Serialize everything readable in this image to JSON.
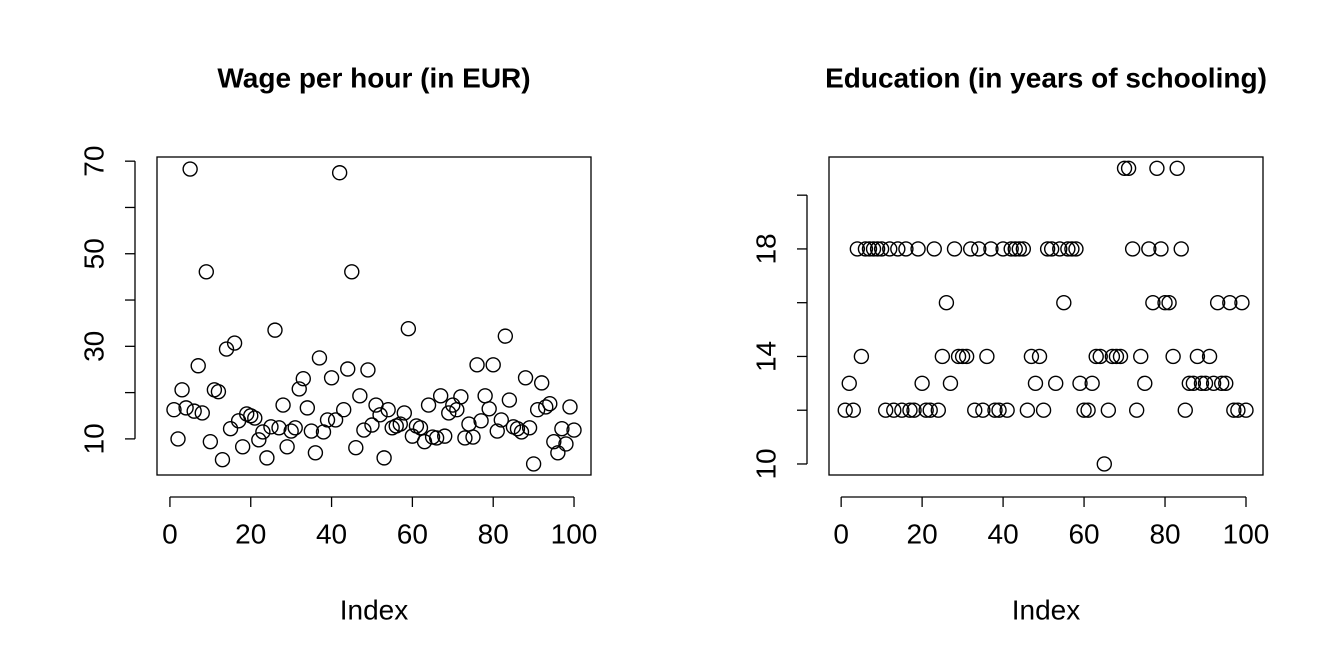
{
  "chart_data": [
    {
      "type": "scatter",
      "title": "Wage per hour (in EUR)",
      "x_label": "Index",
      "x": [
        1,
        2,
        3,
        4,
        5,
        6,
        7,
        8,
        9,
        10,
        11,
        12,
        13,
        14,
        15,
        16,
        17,
        18,
        19,
        20,
        21,
        22,
        23,
        24,
        25,
        26,
        27,
        28,
        29,
        30,
        31,
        32,
        33,
        34,
        35,
        36,
        37,
        38,
        39,
        40,
        41,
        42,
        43,
        44,
        45,
        46,
        47,
        48,
        49,
        50,
        51,
        52,
        53,
        54,
        55,
        56,
        57,
        58,
        59,
        60,
        61,
        62,
        63,
        64,
        65,
        66,
        67,
        68,
        69,
        70,
        71,
        72,
        73,
        74,
        75,
        76,
        77,
        78,
        79,
        80,
        81,
        82,
        83,
        84,
        85,
        86,
        87,
        88,
        89,
        90,
        91,
        92,
        93,
        94,
        95,
        96,
        97,
        98,
        99,
        100
      ],
      "values": [
        16.3,
        10,
        20.6,
        16.7,
        68.3,
        16,
        25.8,
        15.6,
        46.1,
        9.4,
        20.6,
        20.2,
        5.5,
        29.4,
        12.2,
        30.7,
        13.9,
        8.3,
        15.4,
        15,
        14.5,
        9.8,
        11.5,
        5.9,
        12.6,
        33.5,
        12.4,
        17.3,
        8.3,
        11.7,
        12.4,
        20.8,
        23,
        16.7,
        11.7,
        7,
        27.5,
        11.5,
        14.1,
        23.2,
        14.1,
        67.5,
        16.3,
        25.1,
        46.1,
        8.1,
        19.3,
        11.9,
        24.9,
        13,
        17.3,
        15.2,
        5.9,
        16.3,
        12.4,
        12.8,
        13.2,
        15.6,
        33.8,
        10.6,
        12.8,
        12.4,
        9.4,
        17.3,
        10.4,
        10.2,
        19.3,
        10.6,
        15.6,
        17.3,
        16.3,
        19.1,
        10.2,
        13.2,
        10.4,
        26,
        13.9,
        19.3,
        16.5,
        26,
        11.7,
        14.1,
        32.2,
        18.4,
        12.6,
        12.2,
        11.5,
        23.2,
        12.4,
        4.6,
        16.3,
        22.1,
        16.9,
        17.6,
        9.4,
        7,
        12.2,
        8.9,
        16.9,
        11.9
      ],
      "color": "#000000",
      "xlim": [
        -3.2,
        104.2
      ],
      "xticks": [
        0,
        20,
        40,
        60,
        80,
        100
      ],
      "ylim": [
        2.2,
        70.9
      ],
      "yticks": [
        10,
        30,
        50,
        70
      ],
      "yticks_unlabeled": [
        20,
        40,
        60
      ]
    },
    {
      "type": "scatter",
      "title": "Education (in years of schooling)",
      "x_label": "Index",
      "x": [
        1,
        2,
        3,
        4,
        5,
        6,
        7,
        8,
        9,
        10,
        11,
        12,
        13,
        14,
        15,
        16,
        17,
        18,
        19,
        20,
        21,
        22,
        23,
        24,
        25,
        26,
        27,
        28,
        29,
        30,
        31,
        32,
        33,
        34,
        35,
        36,
        37,
        38,
        39,
        40,
        41,
        42,
        43,
        44,
        45,
        46,
        47,
        48,
        49,
        50,
        51,
        52,
        53,
        54,
        55,
        56,
        57,
        58,
        59,
        60,
        61,
        62,
        63,
        64,
        65,
        66,
        67,
        68,
        69,
        70,
        71,
        72,
        73,
        74,
        75,
        76,
        77,
        78,
        79,
        80,
        81,
        82,
        83,
        84,
        85,
        86,
        87,
        88,
        89,
        90,
        91,
        92,
        93,
        94,
        95,
        96,
        97,
        98,
        99,
        100
      ],
      "values": [
        12,
        13,
        12,
        18,
        14,
        18,
        18,
        18,
        18,
        18,
        12,
        18,
        12,
        18,
        12,
        18,
        12,
        12,
        18,
        13,
        12,
        12,
        18,
        12,
        14,
        16,
        13,
        18,
        14,
        14,
        14,
        18,
        12,
        18,
        12,
        14,
        18,
        12,
        12,
        18,
        12,
        18,
        18,
        18,
        18,
        12,
        14,
        13,
        14,
        12,
        18,
        18,
        13,
        18,
        16,
        18,
        18,
        18,
        13,
        12,
        12,
        13,
        14,
        14,
        10,
        12,
        14,
        14,
        14,
        21,
        21,
        18,
        12,
        14,
        13,
        18,
        16,
        21,
        18,
        16,
        16,
        14,
        21,
        18,
        12,
        13,
        13,
        14,
        13,
        13,
        14,
        13,
        16,
        13,
        13,
        16,
        12,
        12,
        16,
        12
      ],
      "color": "#000000",
      "xlim": [
        -3,
        104.2
      ],
      "xticks": [
        0,
        20,
        40,
        60,
        80,
        100
      ],
      "ylim": [
        9.59,
        21.42
      ],
      "yticks": [
        10,
        14,
        18
      ],
      "yticks_unlabeled": [
        12,
        16,
        20
      ]
    }
  ]
}
